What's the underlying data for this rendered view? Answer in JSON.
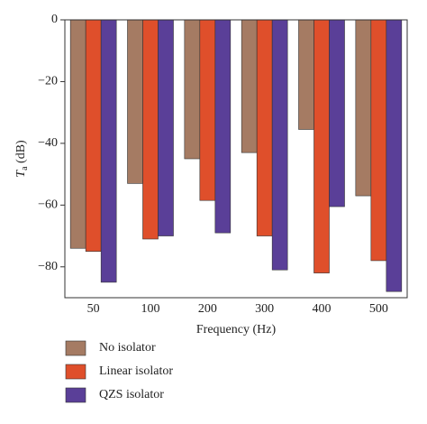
{
  "chart_data": {
    "type": "bar",
    "xlabel": "Frequency (Hz)",
    "ylabel": {
      "symbol": "T",
      "subscript": "a",
      "unit": "(dB)"
    },
    "categories": [
      "50",
      "100",
      "200",
      "300",
      "400",
      "500"
    ],
    "series": [
      {
        "name": "No isolator",
        "color": "#a57b63",
        "values": [
          -74,
          -53,
          -45,
          -43,
          -35.5,
          -57
        ]
      },
      {
        "name": "Linear isolator",
        "color": "#df4f2b",
        "values": [
          -75,
          -71,
          -58.5,
          -70,
          -82,
          -78
        ]
      },
      {
        "name": "QZS isolator",
        "color": "#5a3f98",
        "values": [
          -85,
          -70,
          -69,
          -81,
          -60.5,
          -88
        ]
      }
    ],
    "ylim": [
      -90,
      0
    ],
    "yticks": [
      {
        "value": 0,
        "label": "0"
      },
      {
        "value": -20,
        "label": "−20"
      },
      {
        "value": -40,
        "label": "−40"
      },
      {
        "value": -60,
        "label": "−60"
      },
      {
        "value": -80,
        "label": "−80"
      }
    ],
    "legend": "bottom-left"
  }
}
